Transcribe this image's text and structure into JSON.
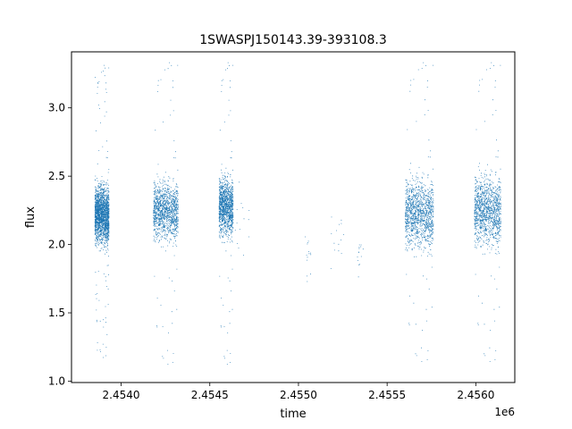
{
  "chart_data": {
    "type": "scatter",
    "title": "1SWASPJ150143.39-393108.3",
    "xlabel": "time",
    "ylabel": "flux",
    "x_offset_label": "1e6",
    "xlim": [
      2.45372,
      2.45622
    ],
    "ylim": [
      0.99,
      3.41
    ],
    "x_ticks": [
      2.454,
      2.4545,
      2.455,
      2.4555,
      2.456
    ],
    "x_tick_labels": [
      "2.4540",
      "2.4545",
      "2.4550",
      "2.4555",
      "2.4560"
    ],
    "y_ticks": [
      1.0,
      1.5,
      2.0,
      2.5,
      3.0
    ],
    "y_tick_labels": [
      "1.0",
      "1.5",
      "2.0",
      "2.5",
      "3.0"
    ],
    "grid": false,
    "marker_color": "#1f77b4",
    "clusters": [
      {
        "x_start": 2.45385,
        "x_end": 2.45393,
        "flux_center": 2.22,
        "flux_spread": 0.25,
        "flux_min": 1.15,
        "flux_max": 3.33,
        "density": "high"
      },
      {
        "x_start": 2.45418,
        "x_end": 2.45432,
        "flux_center": 2.25,
        "flux_spread": 0.25,
        "flux_min": 1.1,
        "flux_max": 3.35,
        "density": "high"
      },
      {
        "x_start": 2.45455,
        "x_end": 2.45463,
        "flux_center": 2.28,
        "flux_spread": 0.25,
        "flux_min": 1.1,
        "flux_max": 3.35,
        "density": "high"
      },
      {
        "x_start": 2.45464,
        "x_end": 2.45472,
        "flux_center": 2.15,
        "flux_spread": 0.2,
        "flux_min": 1.85,
        "flux_max": 2.5,
        "density": "sparse"
      },
      {
        "x_start": 2.45503,
        "x_end": 2.45507,
        "flux_center": 1.95,
        "flux_spread": 0.3,
        "flux_min": 1.28,
        "flux_max": 2.47,
        "density": "sparse"
      },
      {
        "x_start": 2.45518,
        "x_end": 2.45526,
        "flux_center": 2.05,
        "flux_spread": 0.3,
        "flux_min": 1.55,
        "flux_max": 2.5,
        "density": "sparse"
      },
      {
        "x_start": 2.45533,
        "x_end": 2.45537,
        "flux_center": 1.9,
        "flux_spread": 0.2,
        "flux_min": 1.6,
        "flux_max": 2.0,
        "density": "sparse"
      },
      {
        "x_start": 2.4556,
        "x_end": 2.45576,
        "flux_center": 2.23,
        "flux_spread": 0.3,
        "flux_min": 1.12,
        "flux_max": 3.35,
        "density": "high"
      },
      {
        "x_start": 2.45599,
        "x_end": 2.45614,
        "flux_center": 2.25,
        "flux_spread": 0.3,
        "flux_min": 1.12,
        "flux_max": 3.35,
        "density": "high"
      }
    ]
  }
}
